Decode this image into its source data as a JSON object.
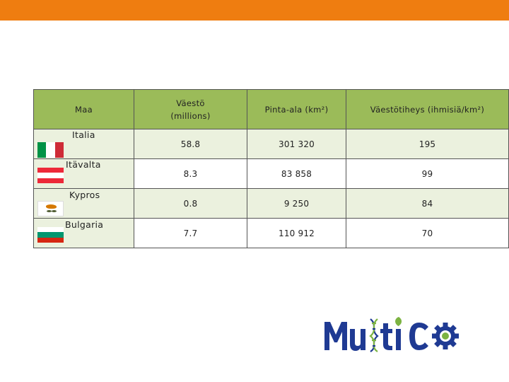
{
  "colors": {
    "accent_bar": "#ef7d10",
    "header_bg": "#9bbb59",
    "band_bg": "#ebf1de",
    "logo_blue": "#1f3a93"
  },
  "table": {
    "headers": {
      "country": "Maa",
      "population_line1": "Väestö",
      "population_line2": "(millions)",
      "area": "Pinta-ala (km²)",
      "density": "Väestötiheys (ihmisiä/km²)"
    },
    "rows": [
      {
        "flag": "italy-flag",
        "name": "Italia",
        "population": "58.8",
        "area": "301 320",
        "density": "195"
      },
      {
        "flag": "austria-flag",
        "name": "Itävalta",
        "population": "8.3",
        "area": "83 858",
        "density": "99"
      },
      {
        "flag": "cyprus-flag",
        "name": "Kypros",
        "population": "0.8",
        "area": "9 250",
        "density": "84"
      },
      {
        "flag": "bulgaria-flag",
        "name": "Bulgaria",
        "population": "7.7",
        "area": "110 912",
        "density": "70"
      }
    ]
  },
  "logo": {
    "text": "MultiCo"
  }
}
